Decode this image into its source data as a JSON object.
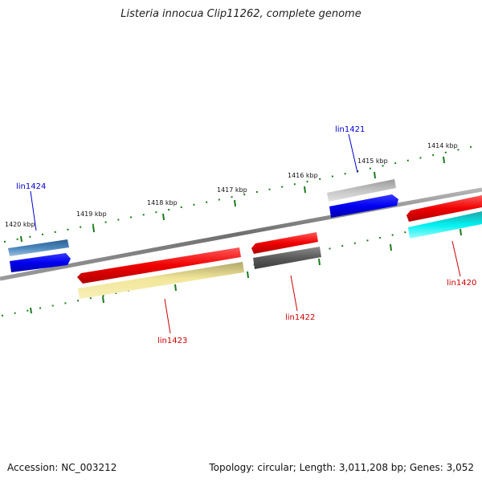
{
  "title": "Listeria innocua Clip11262, complete genome",
  "footer": {
    "accession": "Accession: NC_003212",
    "summary": "Topology: circular; Length: 3,011,208 bp; Genes: 3,052"
  },
  "ruler": {
    "labels": [
      "1420 kbp",
      "1419 kbp",
      "1418 kbp",
      "1417 kbp",
      "1416 kbp",
      "1415 kbp",
      "1414 kbp"
    ]
  },
  "genes": [
    {
      "name": "lin1424",
      "strand": "forward"
    },
    {
      "name": "lin1423",
      "strand": "reverse"
    },
    {
      "name": "lin1422",
      "strand": "reverse"
    },
    {
      "name": "lin1421",
      "strand": "forward"
    },
    {
      "name": "lin1420",
      "strand": "reverse"
    }
  ],
  "colors": {
    "forward_label": "#0000cc",
    "reverse_label": "#cc0000",
    "ticks": "#1a7a1a",
    "backbone": "#7a7a7a"
  }
}
